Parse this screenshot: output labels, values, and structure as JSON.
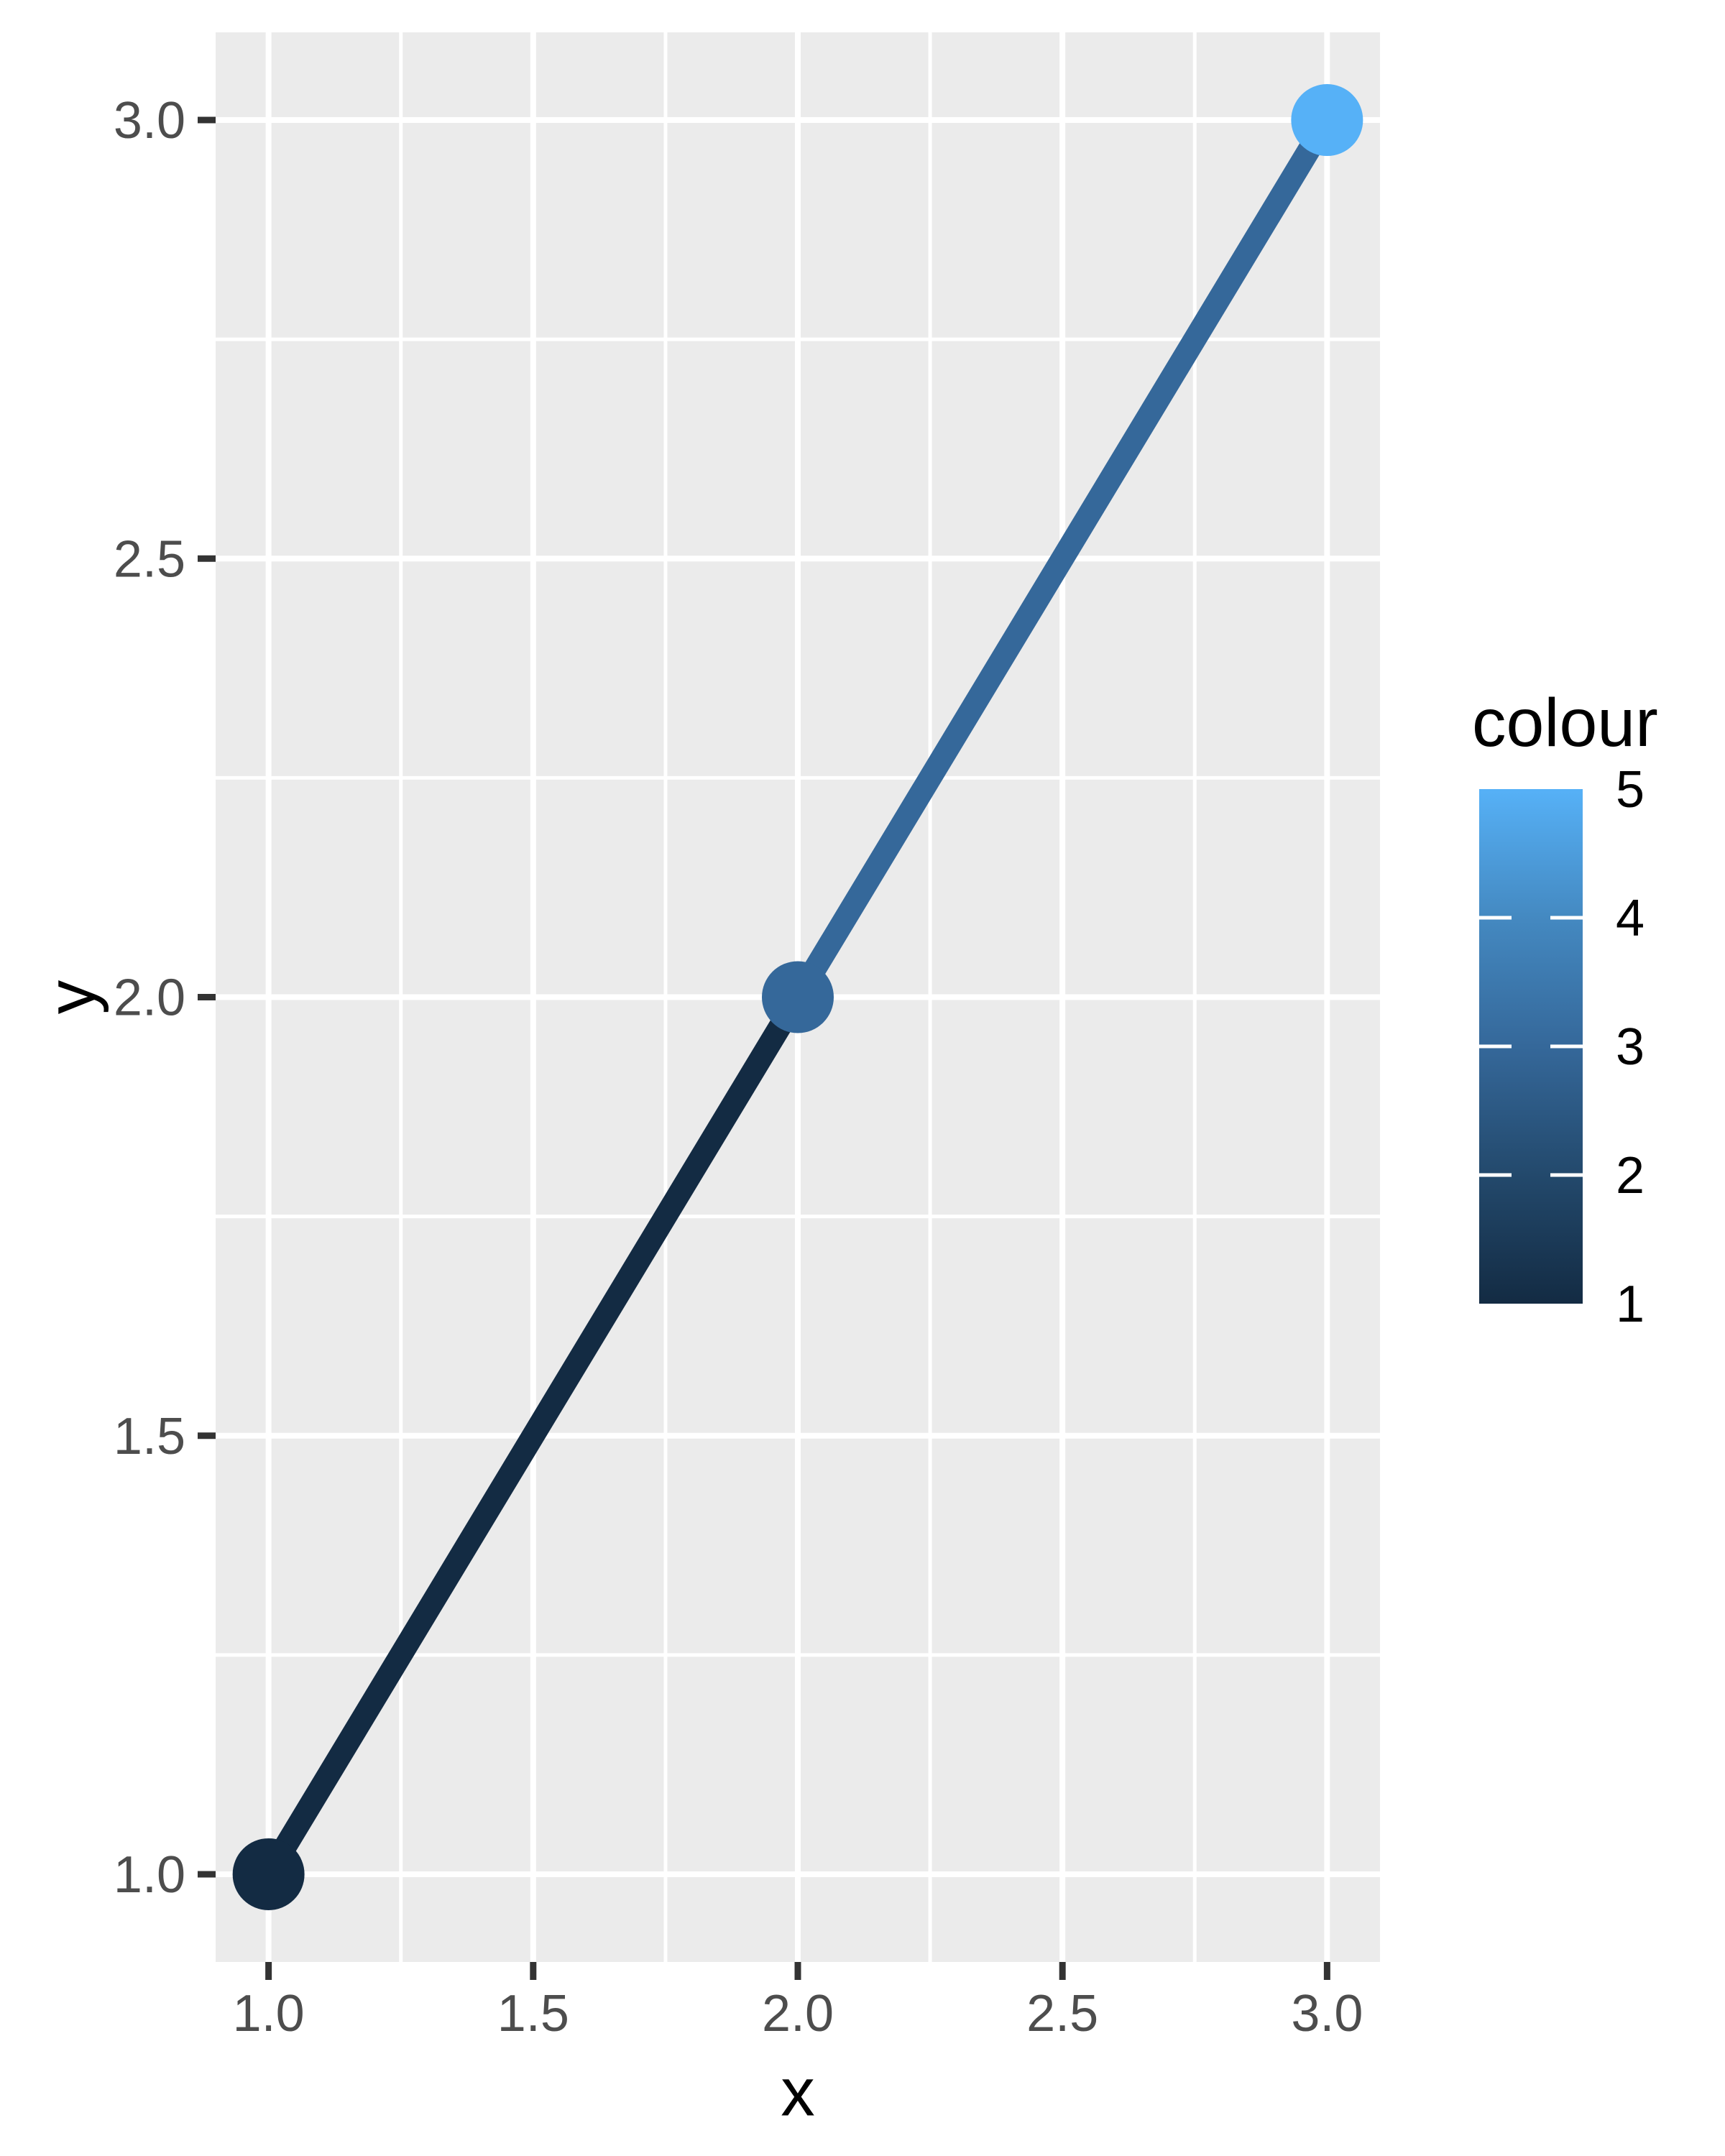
{
  "chart_data": {
    "type": "line",
    "title": "",
    "xlabel": "x",
    "ylabel": "y",
    "grid": true,
    "legend_position": "right",
    "points": [
      {
        "x": 1,
        "y": 1,
        "colour": 1,
        "color": "#132B43"
      },
      {
        "x": 2,
        "y": 2,
        "colour": 3,
        "color": "#35689A"
      },
      {
        "x": 3,
        "y": 3,
        "colour": 5,
        "color": "#56B1F7"
      }
    ],
    "segments": [
      {
        "x1": 1,
        "y1": 1,
        "x2": 2,
        "y2": 2,
        "color": "#132B43"
      },
      {
        "x1": 2,
        "y1": 2,
        "x2": 3,
        "y2": 3,
        "color": "#35689A"
      }
    ],
    "xlim": [
      0.9,
      3.1
    ],
    "ylim": [
      0.9,
      3.1
    ],
    "x_ticks": [
      {
        "value": 1.0,
        "label": "1.0"
      },
      {
        "value": 1.5,
        "label": "1.5"
      },
      {
        "value": 2.0,
        "label": "2.0"
      },
      {
        "value": 2.5,
        "label": "2.5"
      },
      {
        "value": 3.0,
        "label": "3.0"
      }
    ],
    "y_ticks": [
      {
        "value": 1.0,
        "label": "1.0"
      },
      {
        "value": 1.5,
        "label": "1.5"
      },
      {
        "value": 2.0,
        "label": "2.0"
      },
      {
        "value": 2.5,
        "label": "2.5"
      },
      {
        "value": 3.0,
        "label": "3.0"
      }
    ],
    "x_minor": [
      1.25,
      1.75,
      2.25,
      2.75
    ],
    "y_minor": [
      1.25,
      1.75,
      2.25,
      2.75
    ],
    "legend": {
      "title": "colour",
      "limits": [
        1,
        5
      ],
      "ticks": [
        {
          "value": 5,
          "label": "5"
        },
        {
          "value": 4,
          "label": "4"
        },
        {
          "value": 3,
          "label": "3"
        },
        {
          "value": 2,
          "label": "2"
        },
        {
          "value": 1,
          "label": "1"
        }
      ],
      "gradient": [
        {
          "value": 1,
          "color": "#132B43"
        },
        {
          "value": 2,
          "color": "#23496C"
        },
        {
          "value": 3,
          "color": "#35689A"
        },
        {
          "value": 4,
          "color": "#4489C1"
        },
        {
          "value": 5,
          "color": "#56B1F7"
        }
      ]
    },
    "colors": {
      "background": "#FFFFFF",
      "panel_background": "#EBEBEB",
      "grid": "#FFFFFF",
      "tick_mark": "#333333",
      "axis_text": "#4D4D4D",
      "title_text": "#000000"
    }
  }
}
